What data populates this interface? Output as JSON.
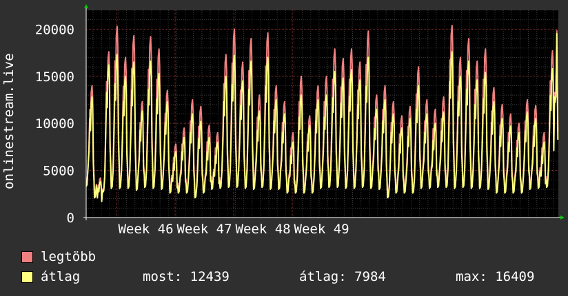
{
  "chart_data": {
    "type": "line",
    "ylabel": "onlinestream.live",
    "ylim": [
      0,
      22000
    ],
    "y_ticks": [
      "0",
      "5000",
      "10000",
      "15000",
      "20000"
    ],
    "x_ticks": [
      "Week 46",
      "Week 47",
      "Week 48",
      "Week 49"
    ],
    "grid": true,
    "legend_position": "bottom-left",
    "series": [
      {
        "name": "legtöbb",
        "color": "#f08080",
        "daily_peaks": [
          14000,
          4200,
          17600,
          20300,
          17000,
          19300,
          12300,
          19200,
          17900,
          13500,
          7800,
          9500,
          12500,
          11800,
          9800,
          9000,
          17300,
          20000,
          16500,
          19000,
          13000,
          19600,
          14000,
          12300,
          9000,
          15000,
          10800,
          14000,
          15000,
          17900,
          16900,
          17900,
          16500,
          19800,
          13000,
          14000,
          12300,
          10800,
          11800,
          16000,
          12500,
          11500,
          12800,
          20400,
          17000,
          19000,
          16600,
          17900,
          13800,
          12000,
          11000,
          10000,
          12500,
          11900,
          9000,
          17700,
          16600
        ],
        "daily_lows": [
          3400,
          2200,
          2800,
          3300,
          3300,
          3300,
          3000,
          3400,
          3300,
          3200,
          2800,
          2800,
          2800,
          2300,
          2800,
          3200,
          3300,
          3400,
          3400,
          3300,
          3200,
          3400,
          3200,
          3200,
          2800,
          2800,
          2800,
          2800,
          3300,
          3400,
          3400,
          3300,
          3300,
          3400,
          3300,
          3200,
          2300,
          2800,
          2800,
          2800,
          3300,
          3300,
          3400,
          3400,
          3300,
          3400,
          3300,
          3300,
          3200,
          2800,
          2800,
          2800,
          2800,
          3200,
          3300,
          3400,
          12400
        ]
      },
      {
        "name": "átlag",
        "color": "#ffff80",
        "daily_peaks": [
          12800,
          3800,
          16200,
          17300,
          15000,
          16500,
          11300,
          16600,
          15300,
          12300,
          7000,
          8500,
          11000,
          10200,
          8500,
          8000,
          15000,
          17200,
          14500,
          16600,
          11300,
          17000,
          12500,
          11000,
          8000,
          13000,
          9800,
          12500,
          13000,
          15500,
          14800,
          15700,
          14600,
          17000,
          11500,
          12500,
          11000,
          9500,
          10500,
          14000,
          11000,
          10000,
          11200,
          17600,
          15000,
          16600,
          14600,
          15400,
          12300,
          10500,
          9700,
          9000,
          11200,
          10500,
          8000,
          15800,
          15000
        ],
        "daily_lows": [
          3300,
          2100,
          2700,
          3100,
          3100,
          3100,
          2900,
          3200,
          3100,
          3000,
          2600,
          2600,
          2600,
          2100,
          2600,
          3000,
          3100,
          3200,
          3200,
          3100,
          3000,
          3200,
          3000,
          3000,
          2600,
          2600,
          2600,
          2600,
          3100,
          3200,
          3200,
          3100,
          3100,
          3200,
          3100,
          3000,
          2100,
          2600,
          2600,
          2600,
          3100,
          3100,
          3200,
          3200,
          3100,
          3200,
          3100,
          3100,
          3000,
          2600,
          2600,
          2600,
          2600,
          3000,
          3100,
          3200,
          12200
        ]
      }
    ]
  },
  "legend": {
    "max_label": "legtöbb",
    "avg_label": "átlag",
    "stats": {
      "most": "most: 12439",
      "atlag": "átlag: 7984",
      "max": "max: 16409"
    }
  }
}
